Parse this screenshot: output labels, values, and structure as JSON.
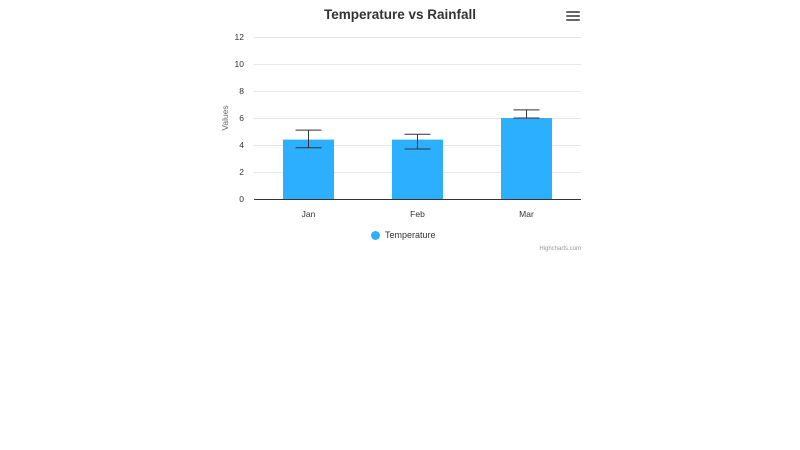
{
  "chart": {
    "title": "Temperature vs Rainfall",
    "menu_icon": "hamburger-menu-icon",
    "credits": "Highcharts.com",
    "colors": {
      "series": "#2caffe",
      "gridline": "#e6e6e6",
      "axis_line": "#333333",
      "error_bar": "#333333"
    }
  },
  "legend": {
    "items": [
      {
        "label": "Temperature",
        "color": "#2caffe"
      }
    ]
  },
  "chart_data": {
    "type": "bar",
    "title": "Temperature vs Rainfall",
    "xlabel": "",
    "ylabel": "Values",
    "categories": [
      "Jan",
      "Feb",
      "Mar"
    ],
    "series": [
      {
        "name": "Temperature",
        "values": [
          4.4,
          4.4,
          6.0
        ],
        "color": "#2caffe"
      }
    ],
    "error_bars": [
      {
        "category": "Jan",
        "low": 3.8,
        "high": 5.1
      },
      {
        "category": "Feb",
        "low": 3.7,
        "high": 4.8
      },
      {
        "category": "Mar",
        "low": 6.0,
        "high": 6.6
      }
    ],
    "yticks": [
      0,
      2,
      4,
      6,
      8,
      10,
      12
    ],
    "ylim": [
      0,
      12
    ],
    "grid": true,
    "legend_position": "bottom-center"
  }
}
